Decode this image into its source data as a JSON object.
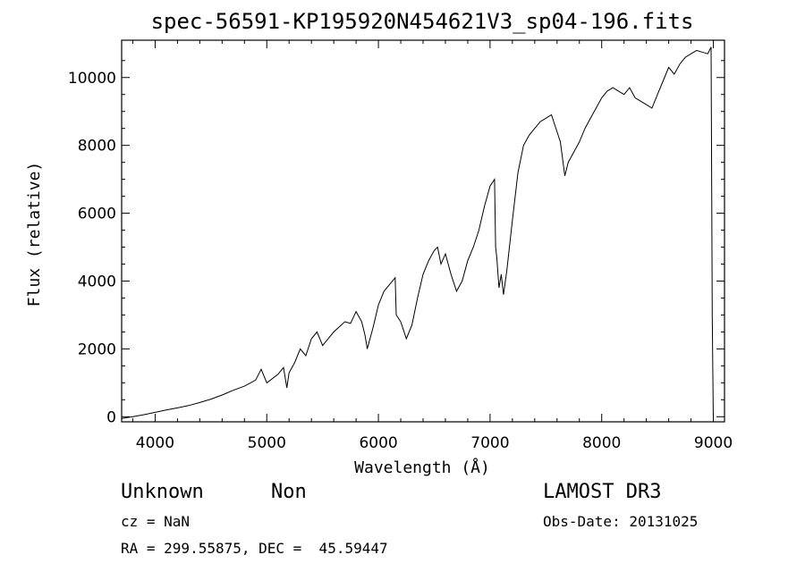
{
  "chart_data": {
    "type": "line",
    "title": "spec-56591-KP195920N454621V3_sp04-196.fits",
    "xlabel": "Wavelength (Å)",
    "ylabel": "Flux (relative)",
    "xlim": [
      3700,
      9100
    ],
    "ylim": [
      -150,
      11100
    ],
    "xticks": [
      4000,
      5000,
      6000,
      7000,
      8000,
      9000
    ],
    "yticks": [
      0,
      2000,
      4000,
      6000,
      8000,
      10000
    ],
    "series": [
      {
        "x": [
          3700,
          3800,
          3900,
          4000,
          4100,
          4200,
          4300,
          4400,
          4500,
          4600,
          4700,
          4800,
          4900,
          4950,
          5000,
          5100,
          5150,
          5180,
          5200,
          5250,
          5300,
          5350,
          5400,
          5450,
          5500,
          5600,
          5700,
          5750,
          5800,
          5850,
          5880,
          5900,
          5950,
          6000,
          6050,
          6100,
          6150,
          6160,
          6200,
          6250,
          6300,
          6350,
          6400,
          6450,
          6500,
          6530,
          6560,
          6600,
          6650,
          6700,
          6750,
          6800,
          6850,
          6900,
          6950,
          7000,
          7040,
          7050,
          7060,
          7080,
          7100,
          7120,
          7150,
          7200,
          7250,
          7300,
          7350,
          7400,
          7450,
          7500,
          7550,
          7600,
          7630,
          7650,
          7670,
          7700,
          7750,
          7800,
          7850,
          7900,
          8000,
          8050,
          8100,
          8150,
          8200,
          8250,
          8300,
          8350,
          8400,
          8450,
          8500,
          8550,
          8600,
          8650,
          8700,
          8750,
          8800,
          8850,
          8900,
          8950,
          8980,
          8990,
          9000
        ],
        "y": [
          -50,
          0,
          60,
          130,
          200,
          260,
          330,
          420,
          520,
          640,
          780,
          900,
          1080,
          1400,
          1000,
          1250,
          1450,
          850,
          1300,
          1600,
          2000,
          1800,
          2300,
          2500,
          2100,
          2500,
          2800,
          2750,
          3100,
          2800,
          2400,
          2000,
          2600,
          3300,
          3700,
          3900,
          4100,
          3000,
          2800,
          2300,
          2700,
          3500,
          4200,
          4600,
          4900,
          5000,
          4500,
          4800,
          4200,
          3700,
          4000,
          4600,
          5000,
          5500,
          6200,
          6800,
          7000,
          5000,
          4700,
          3800,
          4200,
          3600,
          4300,
          5800,
          7200,
          8000,
          8300,
          8500,
          8700,
          8800,
          8900,
          8400,
          8100,
          7600,
          7100,
          7500,
          7800,
          8100,
          8500,
          8800,
          9400,
          9600,
          9700,
          9600,
          9500,
          9700,
          9400,
          9300,
          9200,
          9100,
          9500,
          9900,
          10300,
          10100,
          10400,
          10600,
          10700,
          10800,
          10750,
          10700,
          10900,
          3000,
          -150
        ]
      }
    ]
  },
  "info": {
    "object_class": "Unknown",
    "subclass": "Non",
    "survey": "LAMOST DR3",
    "cz": "cz = NaN",
    "obs_date": "Obs-Date: 20131025",
    "coords": "RA = 299.55875, DEC =  45.59447"
  }
}
